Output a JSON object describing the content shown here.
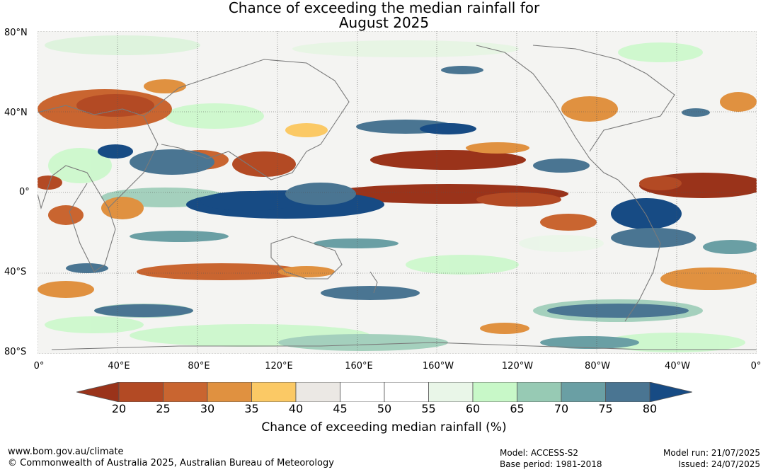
{
  "title": {
    "line1": "Chance of exceeding the median rainfall for",
    "line2": "August 2025"
  },
  "map": {
    "lat_labels": [
      "80°N",
      "40°N",
      "0°",
      "40°S",
      "80°S"
    ],
    "lon_labels": [
      "0°",
      "40°E",
      "80°E",
      "120°E",
      "160°E",
      "160°W",
      "120°W",
      "80°W",
      "40°W",
      "0°"
    ]
  },
  "colorbar": {
    "ticks": [
      "20",
      "25",
      "30",
      "35",
      "40",
      "45",
      "50",
      "55",
      "60",
      "65",
      "70",
      "75",
      "80"
    ],
    "colors": [
      "#9a331a",
      "#b34a24",
      "#c96530",
      "#e09140",
      "#fbc965",
      "#ebe8e4",
      "#ffffff",
      "#ffffff",
      "#e9f6e8",
      "#c8f8c8",
      "#97cab4",
      "#6a9fa4",
      "#4a7592",
      "#174b84"
    ],
    "label": "Chance of exceeding median rainfall (%)"
  },
  "footer": {
    "url": "www.bom.gov.au/climate",
    "copyright": "© Commonwealth of Australia 2025, Australian Bureau of Meteorology",
    "model": "Model: ACCESS-S2",
    "base_period": "Base period: 1981-2018",
    "model_run": "Model run: 21/07/2025",
    "issued": "Issued: 24/07/2025"
  }
}
